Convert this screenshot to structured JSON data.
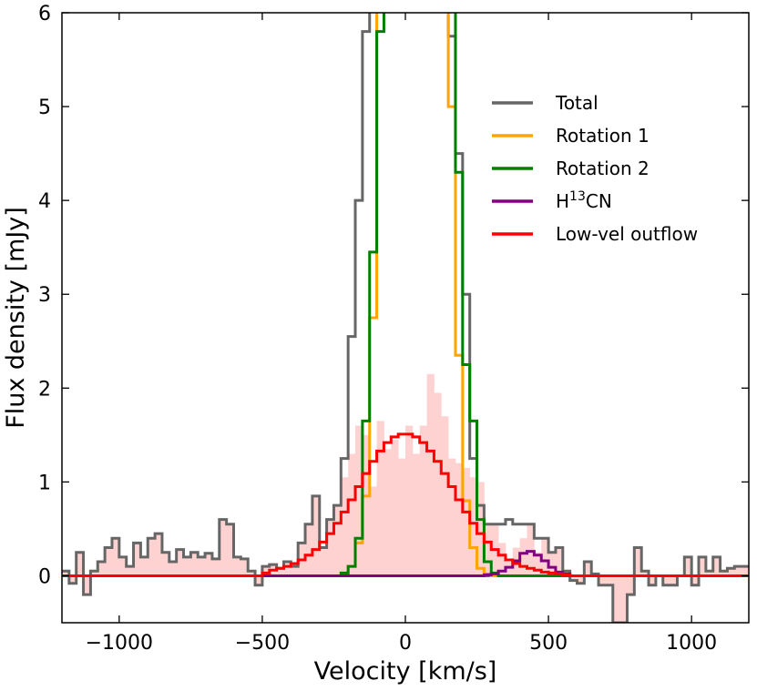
{
  "chart_data": {
    "type": "line",
    "subtype": "step-histogram",
    "xlabel": "Velocity [km/s]",
    "ylabel": "Flux density [mJy]",
    "xlim": [
      -1200,
      1200
    ],
    "ylim": [
      -0.5,
      6
    ],
    "xticks": [
      -1000,
      -500,
      0,
      500,
      1000
    ],
    "xtick_labels": [
      "−1000",
      "−500",
      "0",
      "500",
      "1000"
    ],
    "yticks": [
      0,
      1,
      2,
      3,
      4,
      5,
      6
    ],
    "ytick_labels": [
      "0",
      "1",
      "2",
      "3",
      "4",
      "5",
      "6"
    ],
    "grid": false,
    "legend_position": "upper-right",
    "legend": [
      {
        "label_main": "Total",
        "label_sup": "",
        "label_tail": "",
        "color": "#666666"
      },
      {
        "label_main": "Rotation 1",
        "label_sup": "",
        "label_tail": "",
        "color": "#FFA500"
      },
      {
        "label_main": "Rotation 2",
        "label_sup": "",
        "label_tail": "",
        "color": "#008000"
      },
      {
        "label_main": "H",
        "label_sup": "13",
        "label_tail": "CN",
        "color": "#800080"
      },
      {
        "label_main": "Low-vel outflow",
        "label_sup": "",
        "label_tail": "",
        "color": "#FF0000"
      }
    ],
    "bin_edges": [
      -1200,
      -1175,
      -1150,
      -1125,
      -1100,
      -1075,
      -1050,
      -1025,
      -1000,
      -975,
      -950,
      -925,
      -900,
      -875,
      -850,
      -825,
      -800,
      -775,
      -750,
      -725,
      -700,
      -675,
      -650,
      -625,
      -600,
      -575,
      -550,
      -525,
      -500,
      -475,
      -450,
      -425,
      -400,
      -375,
      -350,
      -325,
      -300,
      -275,
      -250,
      -225,
      -200,
      -175,
      -150,
      -125,
      -100,
      -75,
      -50,
      -25,
      0,
      25,
      50,
      75,
      100,
      125,
      150,
      175,
      200,
      225,
      250,
      275,
      300,
      325,
      350,
      375,
      400,
      425,
      450,
      475,
      500,
      525,
      550,
      575,
      600,
      625,
      650,
      675,
      700,
      725,
      750,
      775,
      800,
      825,
      850,
      875,
      900,
      925,
      950,
      975,
      1000,
      1025,
      1050,
      1075,
      1100,
      1125,
      1150,
      1175,
      1200
    ],
    "observed_fill": {
      "name": "Observed spectrum (shaded)",
      "color": "#FFD2D2",
      "values": [
        0.05,
        -0.08,
        0.25,
        -0.2,
        0.05,
        0.15,
        0.3,
        0.4,
        0.2,
        0.1,
        0.35,
        0.2,
        0.4,
        0.45,
        0.25,
        0.15,
        0.28,
        0.2,
        0.25,
        0.2,
        0.24,
        0.18,
        0.6,
        0.55,
        0.2,
        0.18,
        0.05,
        -0.1,
        0.1,
        0.12,
        0.08,
        0.15,
        0.1,
        0.35,
        0.55,
        0.85,
        0.3,
        0.6,
        0.75,
        1.05,
        1.3,
        1.6,
        1.5,
        0.95,
        1.65,
        1.35,
        1.45,
        1.25,
        1.6,
        1.3,
        1.6,
        2.15,
        1.95,
        1.7,
        1.25,
        1.2,
        1.15,
        1.05,
        1.0,
        0.55,
        0.55,
        0.35,
        0.15,
        0.3,
        0.4,
        0.55,
        0.25,
        0.4,
        0.25,
        0.3,
        0.05,
        -0.05,
        -0.08,
        0.15,
        0.02,
        -0.1,
        -0.1,
        -0.5,
        -0.5,
        -0.2,
        0.3,
        0.05,
        -0.1,
        0,
        -0.1,
        -0.1,
        0,
        0.2,
        -0.1,
        0.2,
        0.05,
        0.2,
        0.05,
        0.08,
        0.1,
        0.1
      ]
    },
    "series": [
      {
        "name": "Total",
        "color": "#666666",
        "width": 3,
        "values": [
          0.05,
          -0.08,
          0.25,
          -0.2,
          0.05,
          0.15,
          0.3,
          0.4,
          0.2,
          0.1,
          0.35,
          0.2,
          0.4,
          0.45,
          0.25,
          0.15,
          0.28,
          0.2,
          0.25,
          0.2,
          0.24,
          0.18,
          0.6,
          0.55,
          0.2,
          0.18,
          0.05,
          -0.1,
          0.1,
          0.12,
          0.08,
          0.15,
          0.1,
          0.35,
          0.55,
          0.85,
          0.3,
          0.6,
          0.75,
          1.25,
          2.55,
          4.0,
          5.8,
          6.5,
          6.5,
          6.5,
          6.5,
          6.5,
          6.5,
          6.5,
          6.5,
          6.5,
          6.5,
          6.5,
          5.75,
          4.5,
          3.0,
          1.25,
          0.75,
          0.55,
          0.55,
          0.55,
          0.6,
          0.55,
          0.55,
          0.55,
          0.4,
          0.4,
          0.25,
          0.3,
          0.05,
          -0.05,
          -0.08,
          0.15,
          0.02,
          -0.1,
          -0.1,
          -0.5,
          -0.5,
          -0.2,
          0.3,
          0.05,
          -0.1,
          0,
          -0.1,
          -0.1,
          0,
          0.2,
          -0.1,
          0.2,
          0.05,
          0.2,
          0.05,
          0.08,
          0.1,
          0.1
        ]
      },
      {
        "name": "Rotation 1",
        "color": "#FFA500",
        "width": 3,
        "values": [
          0,
          0,
          0,
          0,
          0,
          0,
          0,
          0,
          0,
          0,
          0,
          0,
          0,
          0,
          0,
          0,
          0,
          0,
          0,
          0,
          0,
          0,
          0,
          0,
          0,
          0,
          0,
          0,
          0,
          0,
          0,
          0,
          0,
          0,
          0,
          0,
          0,
          0,
          0,
          0.02,
          0.1,
          0.35,
          0.85,
          2.75,
          6.5,
          6.5,
          6.5,
          6.5,
          6.5,
          6.5,
          6.5,
          6.5,
          6.5,
          6.5,
          5.0,
          2.35,
          0.8,
          0.3,
          0.08,
          0.02,
          0,
          0,
          0,
          0,
          0,
          0,
          0,
          0,
          0,
          0,
          0,
          0,
          0,
          0,
          0,
          0,
          0,
          0,
          0,
          0,
          0,
          0,
          0,
          0,
          0,
          0,
          0,
          0,
          0,
          0,
          0,
          0,
          0,
          0,
          0,
          0
        ]
      },
      {
        "name": "Rotation 2",
        "color": "#008000",
        "width": 3,
        "values": [
          0,
          0,
          0,
          0,
          0,
          0,
          0,
          0,
          0,
          0,
          0,
          0,
          0,
          0,
          0,
          0,
          0,
          0,
          0,
          0,
          0,
          0,
          0,
          0,
          0,
          0,
          0,
          0,
          0,
          0,
          0,
          0,
          0,
          0,
          0,
          0,
          0,
          0,
          0,
          0.03,
          0.1,
          0.4,
          1.65,
          3.45,
          5.8,
          6.5,
          6.5,
          6.5,
          6.5,
          6.5,
          6.5,
          6.5,
          6.5,
          6.5,
          6.5,
          4.3,
          2.25,
          1.65,
          0.6,
          0.15,
          0.03,
          0,
          0,
          0,
          0,
          0,
          0,
          0,
          0,
          0,
          0,
          0,
          0,
          0,
          0,
          0,
          0,
          0,
          0,
          0,
          0,
          0,
          0,
          0,
          0,
          0,
          0,
          0,
          0,
          0,
          0,
          0,
          0,
          0,
          0,
          0
        ]
      },
      {
        "name": "H13CN",
        "color": "#800080",
        "width": 3,
        "values": [
          0,
          0,
          0,
          0,
          0,
          0,
          0,
          0,
          0,
          0,
          0,
          0,
          0,
          0,
          0,
          0,
          0,
          0,
          0,
          0,
          0,
          0,
          0,
          0,
          0,
          0,
          0,
          0,
          0,
          0,
          0,
          0,
          0,
          0,
          0,
          0,
          0,
          0,
          0,
          0,
          0,
          0,
          0,
          0,
          0,
          0,
          0,
          0,
          0,
          0,
          0,
          0,
          0,
          0,
          0,
          0,
          0,
          0,
          0,
          0.01,
          0.02,
          0.05,
          0.09,
          0.16,
          0.24,
          0.26,
          0.22,
          0.16,
          0.09,
          0.04,
          0.02,
          0,
          0,
          0,
          0,
          0,
          0,
          0,
          0,
          0,
          0,
          0,
          0,
          0,
          0,
          0,
          0,
          0,
          0,
          0,
          0,
          0,
          0,
          0,
          0,
          0
        ]
      },
      {
        "name": "Low-vel outflow",
        "color": "#FF0000",
        "width": 3,
        "values": [
          0,
          0,
          0,
          0,
          0,
          0,
          0,
          0,
          0,
          0,
          0,
          0,
          0,
          0,
          0,
          0,
          0,
          0,
          0,
          0,
          0,
          0,
          0,
          0,
          0,
          0,
          0,
          0,
          0.03,
          0.06,
          0.08,
          0.1,
          0.13,
          0.17,
          0.22,
          0.28,
          0.36,
          0.45,
          0.56,
          0.68,
          0.81,
          0.95,
          1.09,
          1.22,
          1.33,
          1.42,
          1.48,
          1.51,
          1.51,
          1.48,
          1.42,
          1.33,
          1.22,
          1.09,
          0.95,
          0.81,
          0.68,
          0.56,
          0.45,
          0.36,
          0.28,
          0.22,
          0.17,
          0.13,
          0.1,
          0.08,
          0.06,
          0.04,
          0.03,
          0.02,
          0.01,
          0,
          0,
          0,
          0,
          0,
          0,
          0,
          0,
          0,
          0,
          0,
          0,
          0,
          0,
          0,
          0,
          0,
          0,
          0,
          0,
          0,
          0,
          0,
          0,
          0
        ]
      }
    ]
  }
}
